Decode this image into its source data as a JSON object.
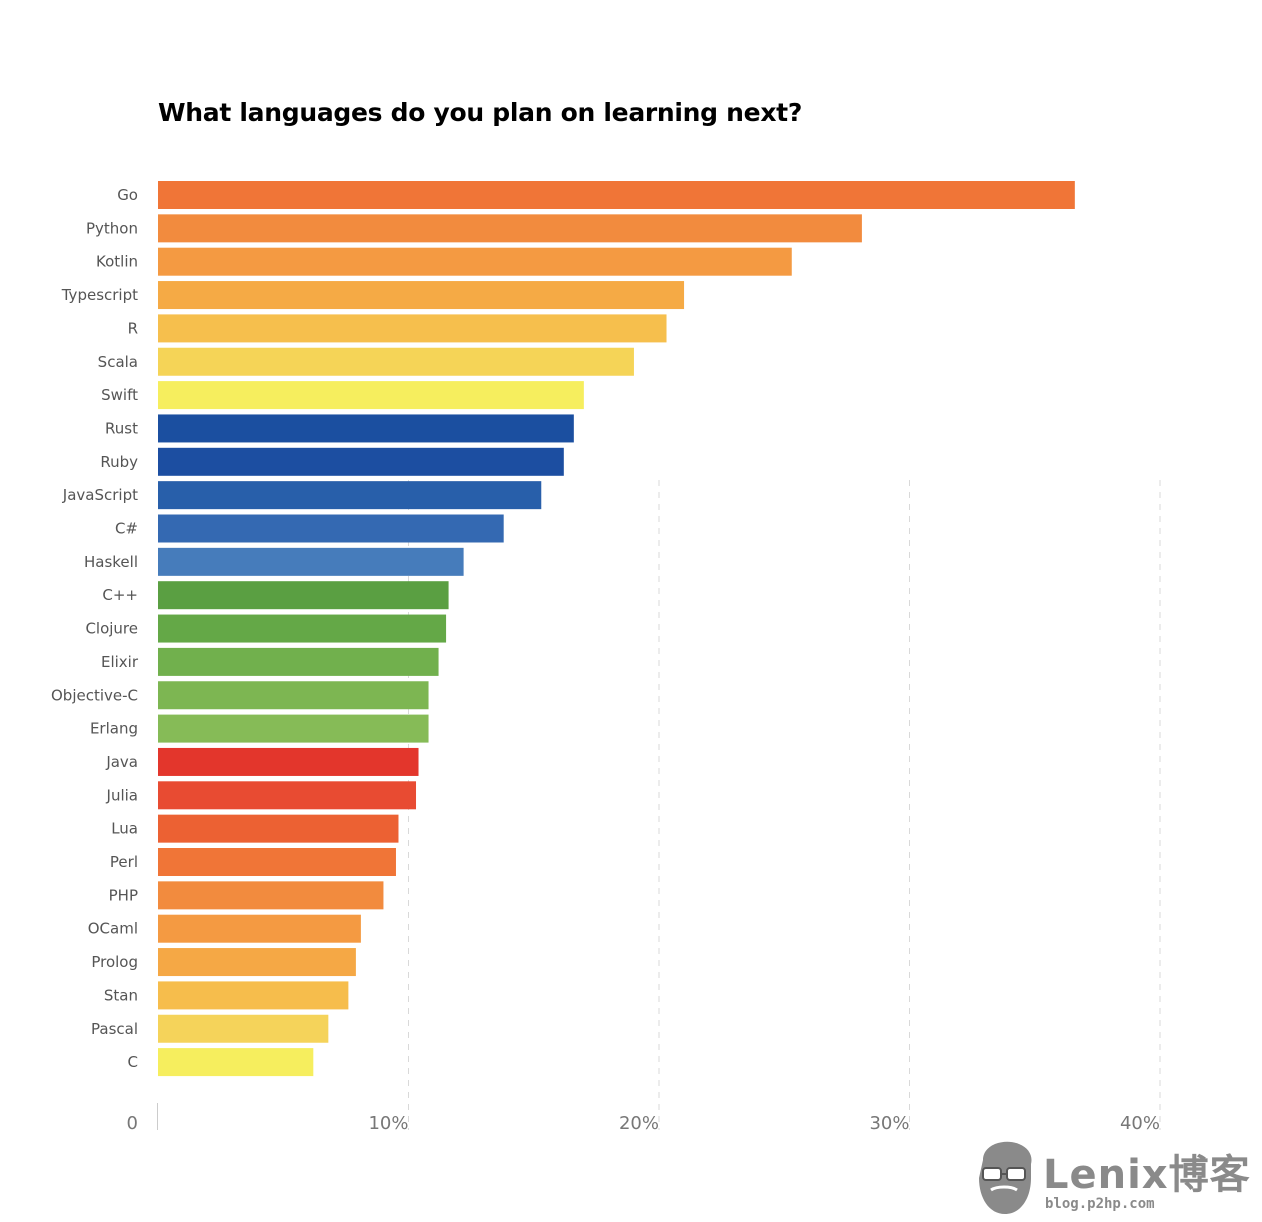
{
  "chart_data": {
    "type": "bar",
    "orientation": "horizontal",
    "title": "What languages do you plan on learning next?",
    "categories": [
      "Go",
      "Python",
      "Kotlin",
      "Typescript",
      "R",
      "Scala",
      "Swift",
      "Rust",
      "Ruby",
      "JavaScript",
      "C#",
      "Haskell",
      "C++",
      "Clojure",
      "Elixir",
      "Objective-C",
      "Erlang",
      "Java",
      "Julia",
      "Lua",
      "Perl",
      "PHP",
      "OCaml",
      "Prolog",
      "Stan",
      "Pascal",
      "C"
    ],
    "values": [
      36.6,
      28.1,
      25.3,
      21.0,
      20.3,
      19.0,
      17.0,
      16.6,
      16.2,
      15.3,
      13.8,
      12.2,
      11.6,
      11.5,
      11.2,
      10.8,
      10.8,
      10.4,
      10.3,
      9.6,
      9.5,
      9.0,
      8.1,
      7.9,
      7.6,
      6.8,
      6.2
    ],
    "colors": [
      "#f07537",
      "#f28b3e",
      "#f49a42",
      "#f5aa45",
      "#f6bf4d",
      "#f5d457",
      "#f6ee5e",
      "#1b4fa0",
      "#1c4ea1",
      "#285faa",
      "#3469b2",
      "#467cbb",
      "#5a9f42",
      "#64a847",
      "#71b04d",
      "#7db652",
      "#86bb57",
      "#e3362c",
      "#e84b32",
      "#ec6133",
      "#f07537",
      "#f28b3e",
      "#f49a42",
      "#f5a845",
      "#f6bd4c",
      "#f5d35a",
      "#f6ee5e"
    ],
    "x_ticks": [
      "0",
      "10%",
      "20%",
      "30%",
      "40%"
    ],
    "xlim": [
      0,
      40
    ],
    "grid": "vertical dashed"
  },
  "watermark": {
    "main": "Lenix博客",
    "sub": "blog.p2hp.com"
  }
}
